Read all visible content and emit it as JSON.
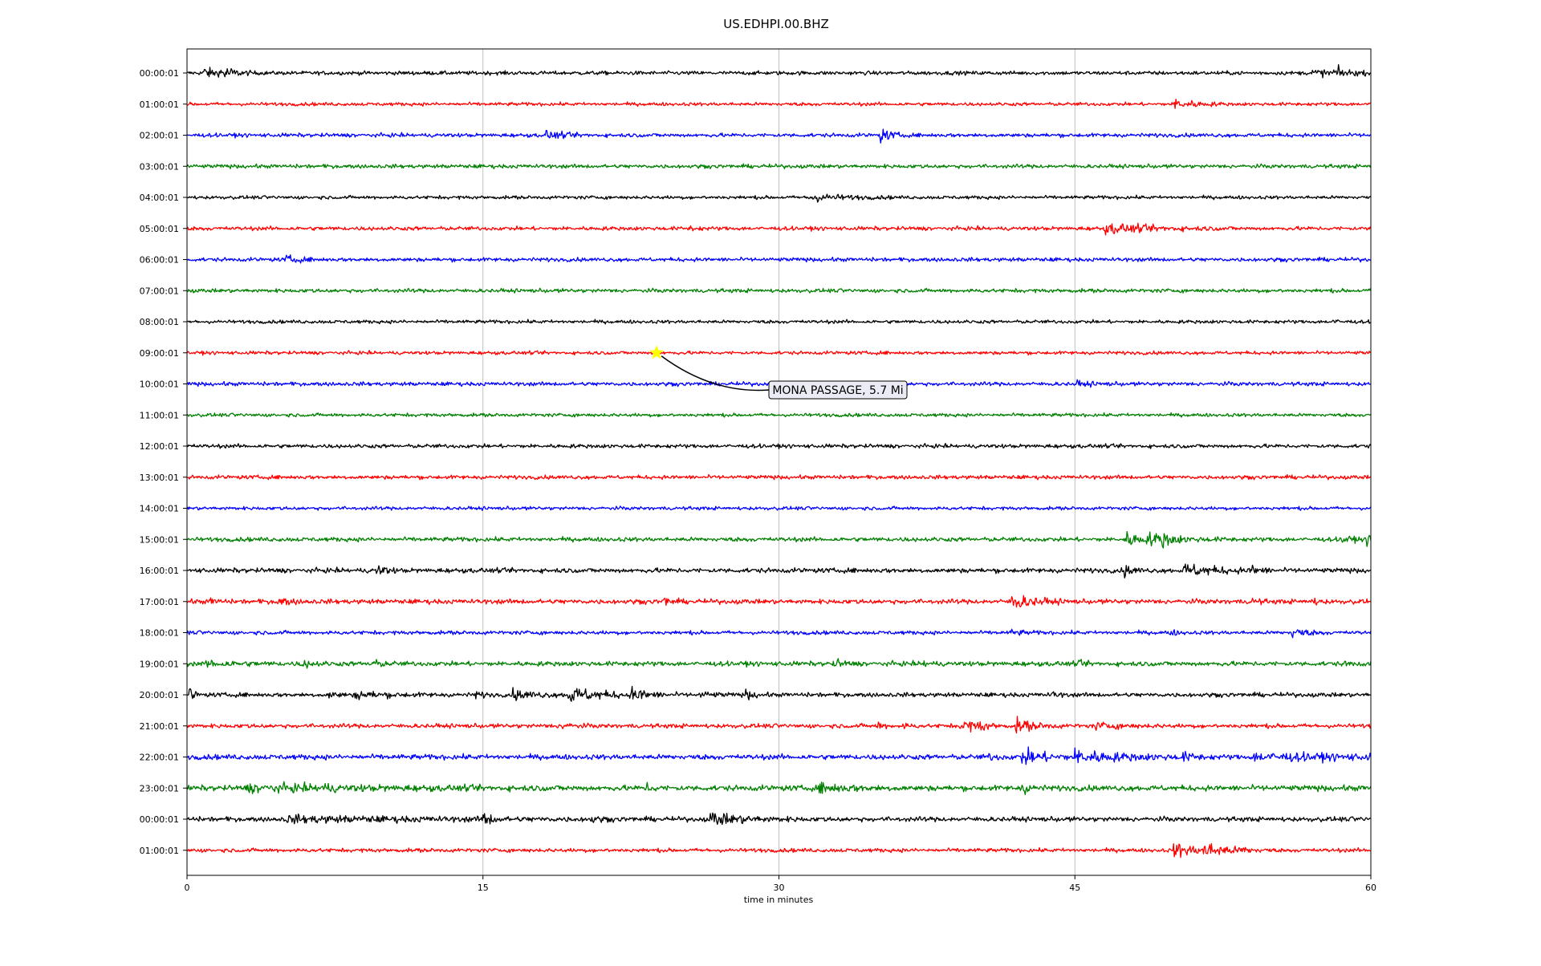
{
  "chart_data": {
    "type": "line",
    "title": "US.EDHPI.00.BHZ",
    "xlabel": "time in minutes",
    "ylabel": "",
    "xlim": [
      0,
      60
    ],
    "x_ticks": [
      0,
      15,
      30,
      45,
      60
    ],
    "x_tick_labels": [
      "0",
      "15",
      "30",
      "45",
      "60"
    ],
    "grid": "vertical-only",
    "trace_colors": [
      "#000000",
      "#ff0000",
      "#0000ff",
      "#008000"
    ],
    "rows": [
      {
        "label": "00:00:01",
        "color": "#000000",
        "noise": 0.45,
        "events": [
          {
            "t": 0.8,
            "amp": 1.6,
            "dur": 0.5
          },
          {
            "t": 1.7,
            "amp": 1.8,
            "dur": 0.6
          },
          {
            "t": 57.0,
            "amp": 0.7,
            "dur": 1.2
          },
          {
            "t": 58.0,
            "amp": 1.3,
            "dur": 0.6
          }
        ]
      },
      {
        "label": "01:00:01",
        "color": "#ff0000",
        "noise": 0.4,
        "events": [
          {
            "t": 50.0,
            "amp": 1.3,
            "dur": 0.9
          }
        ]
      },
      {
        "label": "02:00:01",
        "color": "#0000ff",
        "noise": 0.45,
        "events": [
          {
            "t": 18.2,
            "amp": 0.8,
            "dur": 0.8
          },
          {
            "t": 35.1,
            "amp": 1.6,
            "dur": 0.5
          }
        ]
      },
      {
        "label": "03:00:01",
        "color": "#008000",
        "noise": 0.45,
        "events": []
      },
      {
        "label": "04:00:01",
        "color": "#000000",
        "noise": 0.4,
        "events": [
          {
            "t": 31.5,
            "amp": 0.9,
            "dur": 1.5
          }
        ]
      },
      {
        "label": "05:00:01",
        "color": "#ff0000",
        "noise": 0.45,
        "events": [
          {
            "t": 25.5,
            "amp": 0.5,
            "dur": 0.3
          },
          {
            "t": 46.5,
            "amp": 1.1,
            "dur": 2.2
          }
        ]
      },
      {
        "label": "06:00:01",
        "color": "#0000ff",
        "noise": 0.45,
        "events": [
          {
            "t": 5.0,
            "amp": 0.8,
            "dur": 0.6
          }
        ]
      },
      {
        "label": "07:00:01",
        "color": "#008000",
        "noise": 0.45,
        "events": []
      },
      {
        "label": "08:00:01",
        "color": "#000000",
        "noise": 0.4,
        "events": [
          {
            "t": 58.0,
            "amp": 0.5,
            "dur": 0.4
          }
        ]
      },
      {
        "label": "09:00:01",
        "color": "#ff0000",
        "noise": 0.4,
        "events": []
      },
      {
        "label": "10:00:01",
        "color": "#0000ff",
        "noise": 0.45,
        "events": [
          {
            "t": 45.0,
            "amp": 0.5,
            "dur": 0.8
          }
        ]
      },
      {
        "label": "11:00:01",
        "color": "#008000",
        "noise": 0.4,
        "events": []
      },
      {
        "label": "12:00:01",
        "color": "#000000",
        "noise": 0.45,
        "events": []
      },
      {
        "label": "13:00:01",
        "color": "#ff0000",
        "noise": 0.45,
        "events": []
      },
      {
        "label": "14:00:01",
        "color": "#0000ff",
        "noise": 0.4,
        "events": []
      },
      {
        "label": "15:00:01",
        "color": "#008000",
        "noise": 0.5,
        "events": [
          {
            "t": 47.5,
            "amp": 1.6,
            "dur": 1.0
          },
          {
            "t": 48.8,
            "amp": 0.9,
            "dur": 1.5
          },
          {
            "t": 49.3,
            "amp": 1.2,
            "dur": 0.4
          },
          {
            "t": 58.5,
            "amp": 1.0,
            "dur": 0.4
          },
          {
            "t": 59.8,
            "amp": 1.0,
            "dur": 0.6
          }
        ]
      },
      {
        "label": "16:00:01",
        "color": "#000000",
        "noise": 0.55,
        "events": [
          {
            "t": 9.6,
            "amp": 1.4,
            "dur": 0.4
          },
          {
            "t": 47.5,
            "amp": 1.2,
            "dur": 0.4
          },
          {
            "t": 50.5,
            "amp": 1.4,
            "dur": 1.5
          },
          {
            "t": 54.0,
            "amp": 0.9,
            "dur": 0.4
          }
        ]
      },
      {
        "label": "17:00:01",
        "color": "#ff0000",
        "noise": 0.55,
        "events": [
          {
            "t": 1.2,
            "amp": 0.7,
            "dur": 0.3
          },
          {
            "t": 4.6,
            "amp": 0.9,
            "dur": 0.5
          },
          {
            "t": 24.1,
            "amp": 1.3,
            "dur": 0.3
          },
          {
            "t": 41.8,
            "amp": 1.8,
            "dur": 1.0
          },
          {
            "t": 54.0,
            "amp": 0.6,
            "dur": 0.3
          },
          {
            "t": 57.0,
            "amp": 0.7,
            "dur": 0.3
          }
        ]
      },
      {
        "label": "18:00:01",
        "color": "#0000ff",
        "noise": 0.45,
        "events": [
          {
            "t": 41.8,
            "amp": 0.6,
            "dur": 0.5
          },
          {
            "t": 49.8,
            "amp": 0.5,
            "dur": 0.4
          },
          {
            "t": 56.0,
            "amp": 1.2,
            "dur": 0.6
          }
        ]
      },
      {
        "label": "19:00:01",
        "color": "#008000",
        "noise": 0.55,
        "events": [
          {
            "t": 1.0,
            "amp": 0.7,
            "dur": 1.2
          },
          {
            "t": 5.8,
            "amp": 0.8,
            "dur": 0.5
          },
          {
            "t": 9.2,
            "amp": 0.9,
            "dur": 0.5
          },
          {
            "t": 32.8,
            "amp": 1.0,
            "dur": 0.4
          },
          {
            "t": 37.3,
            "amp": 0.6,
            "dur": 0.3
          },
          {
            "t": 45.1,
            "amp": 0.6,
            "dur": 0.3
          },
          {
            "t": 58.7,
            "amp": 0.6,
            "dur": 0.3
          }
        ]
      },
      {
        "label": "20:00:01",
        "color": "#000000",
        "noise": 0.5,
        "events": [
          {
            "t": 0.1,
            "amp": 2.1,
            "dur": 0.2
          },
          {
            "t": 7.2,
            "amp": 0.8,
            "dur": 0.4
          },
          {
            "t": 8.5,
            "amp": 0.8,
            "dur": 1.4
          },
          {
            "t": 14.5,
            "amp": 0.8,
            "dur": 0.4
          },
          {
            "t": 16.5,
            "amp": 1.0,
            "dur": 1.0
          },
          {
            "t": 19.3,
            "amp": 1.8,
            "dur": 1.5
          },
          {
            "t": 22.5,
            "amp": 1.4,
            "dur": 0.8
          },
          {
            "t": 26.0,
            "amp": 0.6,
            "dur": 0.6
          },
          {
            "t": 28.3,
            "amp": 1.0,
            "dur": 0.4
          },
          {
            "t": 43.8,
            "amp": 0.6,
            "dur": 0.3
          }
        ]
      },
      {
        "label": "21:00:01",
        "color": "#ff0000",
        "noise": 0.5,
        "events": [
          {
            "t": 19.0,
            "amp": 0.8,
            "dur": 0.4
          },
          {
            "t": 35.0,
            "amp": 0.8,
            "dur": 0.3
          },
          {
            "t": 36.2,
            "amp": 0.6,
            "dur": 0.3
          },
          {
            "t": 39.2,
            "amp": 1.7,
            "dur": 0.7
          },
          {
            "t": 40.1,
            "amp": 1.1,
            "dur": 0.3
          },
          {
            "t": 42.0,
            "amp": 1.6,
            "dur": 0.8
          },
          {
            "t": 46.0,
            "amp": 0.6,
            "dur": 1.2
          }
        ]
      },
      {
        "label": "22:00:01",
        "color": "#0000ff",
        "noise": 0.6,
        "events": [
          {
            "t": 40.5,
            "amp": 0.6,
            "dur": 0.5
          },
          {
            "t": 42.3,
            "amp": 1.7,
            "dur": 1.2
          },
          {
            "t": 45.0,
            "amp": 1.4,
            "dur": 2.2
          },
          {
            "t": 50.3,
            "amp": 0.9,
            "dur": 0.6
          },
          {
            "t": 54.0,
            "amp": 0.7,
            "dur": 6.0
          }
        ]
      },
      {
        "label": "23:00:01",
        "color": "#008000",
        "noise": 0.65,
        "events": [
          {
            "t": 3.0,
            "amp": 0.6,
            "dur": 6.0
          },
          {
            "t": 6.8,
            "amp": 0.8,
            "dur": 0.3
          },
          {
            "t": 23.3,
            "amp": 1.0,
            "dur": 0.3
          },
          {
            "t": 32.0,
            "amp": 0.9,
            "dur": 1.5
          },
          {
            "t": 42.3,
            "amp": 1.2,
            "dur": 0.4
          }
        ]
      },
      {
        "label": "00:00:01",
        "color": "#000000",
        "noise": 0.55,
        "events": [
          {
            "t": 5.0,
            "amp": 0.6,
            "dur": 6.0
          },
          {
            "t": 15.0,
            "amp": 1.7,
            "dur": 0.4
          },
          {
            "t": 26.5,
            "amp": 1.4,
            "dur": 1.6
          },
          {
            "t": 20.4,
            "amp": 0.6,
            "dur": 0.4
          }
        ]
      },
      {
        "label": "01:00:01",
        "color": "#ff0000",
        "noise": 0.45,
        "events": [
          {
            "t": 50.0,
            "amp": 1.6,
            "dur": 1.2
          },
          {
            "t": 51.5,
            "amp": 1.4,
            "dur": 1.2
          },
          {
            "t": 53.5,
            "amp": 0.5,
            "dur": 0.3
          }
        ]
      }
    ],
    "annotation": {
      "text": "MONA PASSAGE, 5.7 Mi",
      "row": 9,
      "time": 23.8,
      "marker": "star",
      "marker_color": "#ffff00"
    }
  }
}
